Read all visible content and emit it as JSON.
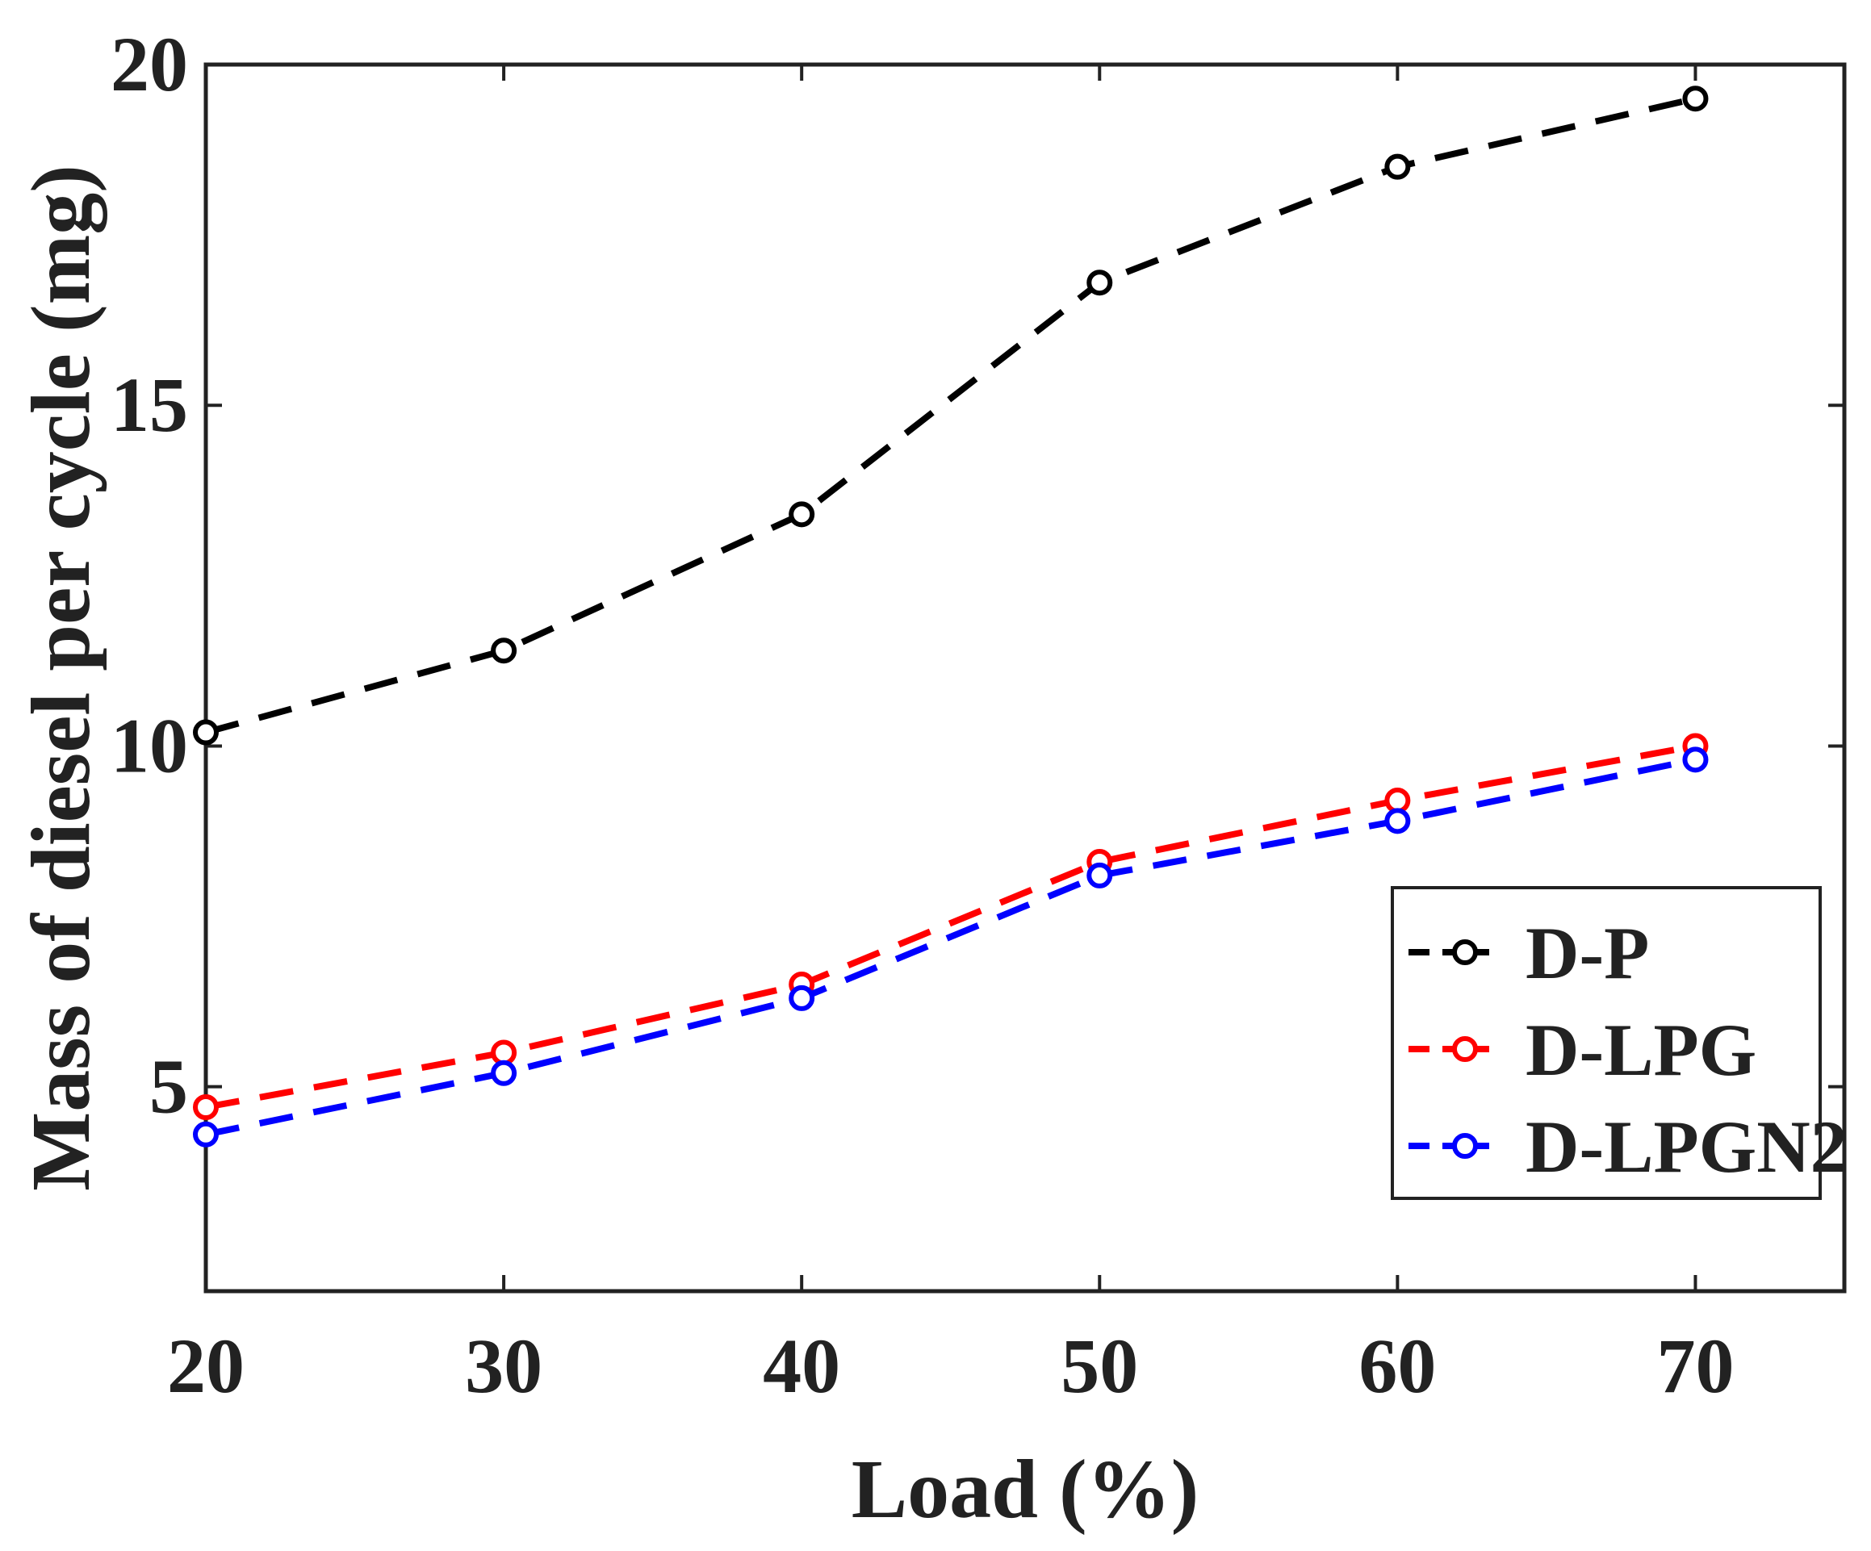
{
  "chart_data": {
    "type": "line",
    "title": "",
    "xlabel": "Load (%)",
    "ylabel": "Mass of diesel per cycle (mg)",
    "x": [
      20,
      30,
      40,
      50,
      60,
      70
    ],
    "xlim": [
      20,
      75
    ],
    "ylim": [
      2,
      20
    ],
    "xticks": [
      "20",
      "30",
      "40",
      "50",
      "60",
      "70"
    ],
    "yticks": [
      "5",
      "10",
      "15",
      "20"
    ],
    "grid": false,
    "legend_position": "bottom-right",
    "series": [
      {
        "name": "D-P",
        "color": "#000000",
        "marker": "circle-open",
        "line_style": "dashed",
        "values": [
          10.2,
          11.4,
          13.4,
          16.8,
          18.5,
          19.5
        ]
      },
      {
        "name": "D-LPG",
        "color": "#ff0000",
        "marker": "circle-open",
        "line_style": "dashed",
        "values": [
          4.7,
          5.5,
          6.5,
          8.3,
          9.2,
          10.0
        ]
      },
      {
        "name": "D-LPGN2",
        "color": "#0000ff",
        "marker": "circle-open",
        "line_style": "dashed",
        "values": [
          4.3,
          5.2,
          6.3,
          8.1,
          8.9,
          9.8
        ]
      }
    ]
  }
}
